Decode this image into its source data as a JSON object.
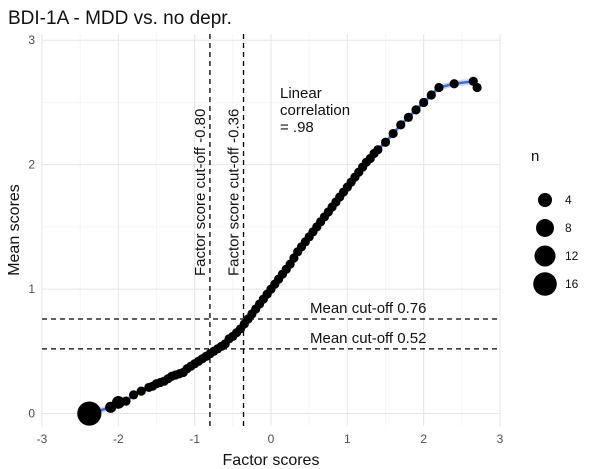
{
  "chart_data": {
    "type": "scatter",
    "title": "BDI-1A - MDD vs. no depr.",
    "xlabel": "Factor scores",
    "ylabel": "Mean scores",
    "xlim": [
      -3,
      3
    ],
    "ylim": [
      -0.1,
      3.05
    ],
    "x_ticks": [
      -3,
      -2,
      -1,
      0,
      1,
      2,
      3
    ],
    "y_ticks": [
      0,
      1,
      2,
      3
    ],
    "grid": true,
    "legend": {
      "title": "n",
      "position": "right",
      "entries": [
        {
          "label": "4",
          "size": 4
        },
        {
          "label": "8",
          "size": 8
        },
        {
          "label": "12",
          "size": 12
        },
        {
          "label": "16",
          "size": 16
        }
      ]
    },
    "vlines": [
      {
        "x": -0.8,
        "label": "Factor score cut-off -0.80"
      },
      {
        "x": -0.36,
        "label": "Factor score cut-off -0.36"
      }
    ],
    "hlines": [
      {
        "y": 0.76,
        "label": "Mean cut-off 0.76"
      },
      {
        "y": 0.52,
        "label": "Mean cut-off 0.52"
      }
    ],
    "annotation": {
      "lines": [
        "Linear",
        "correlation",
        "= .98"
      ]
    },
    "trend_color": "#3d6fe0",
    "point_color": "#000000",
    "points": [
      {
        "x": -2.38,
        "y": 0.0,
        "n": 17
      },
      {
        "x": -2.1,
        "y": 0.05,
        "n": 2
      },
      {
        "x": -2.0,
        "y": 0.09,
        "n": 3
      },
      {
        "x": -1.9,
        "y": 0.1,
        "n": 1
      },
      {
        "x": -1.8,
        "y": 0.15,
        "n": 1
      },
      {
        "x": -1.7,
        "y": 0.18,
        "n": 1
      },
      {
        "x": -1.6,
        "y": 0.21,
        "n": 1
      },
      {
        "x": -1.55,
        "y": 0.22,
        "n": 1
      },
      {
        "x": -1.5,
        "y": 0.24,
        "n": 1
      },
      {
        "x": -1.45,
        "y": 0.25,
        "n": 1
      },
      {
        "x": -1.4,
        "y": 0.26,
        "n": 1
      },
      {
        "x": -1.35,
        "y": 0.28,
        "n": 1
      },
      {
        "x": -1.3,
        "y": 0.3,
        "n": 1
      },
      {
        "x": -1.25,
        "y": 0.31,
        "n": 1
      },
      {
        "x": -1.2,
        "y": 0.32,
        "n": 1
      },
      {
        "x": -1.15,
        "y": 0.33,
        "n": 1
      },
      {
        "x": -1.1,
        "y": 0.36,
        "n": 1
      },
      {
        "x": -1.05,
        "y": 0.38,
        "n": 1
      },
      {
        "x": -1.0,
        "y": 0.4,
        "n": 1
      },
      {
        "x": -0.95,
        "y": 0.42,
        "n": 1
      },
      {
        "x": -0.9,
        "y": 0.44,
        "n": 1
      },
      {
        "x": -0.85,
        "y": 0.46,
        "n": 1
      },
      {
        "x": -0.8,
        "y": 0.48,
        "n": 1
      },
      {
        "x": -0.75,
        "y": 0.5,
        "n": 1
      },
      {
        "x": -0.7,
        "y": 0.52,
        "n": 1
      },
      {
        "x": -0.65,
        "y": 0.54,
        "n": 1
      },
      {
        "x": -0.6,
        "y": 0.56,
        "n": 1
      },
      {
        "x": -0.55,
        "y": 0.6,
        "n": 1
      },
      {
        "x": -0.5,
        "y": 0.62,
        "n": 1
      },
      {
        "x": -0.45,
        "y": 0.65,
        "n": 1
      },
      {
        "x": -0.4,
        "y": 0.68,
        "n": 1
      },
      {
        "x": -0.35,
        "y": 0.72,
        "n": 1
      },
      {
        "x": -0.3,
        "y": 0.76,
        "n": 1
      },
      {
        "x": -0.25,
        "y": 0.8,
        "n": 1
      },
      {
        "x": -0.2,
        "y": 0.84,
        "n": 1
      },
      {
        "x": -0.15,
        "y": 0.88,
        "n": 1
      },
      {
        "x": -0.1,
        "y": 0.92,
        "n": 1
      },
      {
        "x": -0.05,
        "y": 0.96,
        "n": 1
      },
      {
        "x": 0.0,
        "y": 1.0,
        "n": 1
      },
      {
        "x": 0.05,
        "y": 1.04,
        "n": 1
      },
      {
        "x": 0.1,
        "y": 1.08,
        "n": 1
      },
      {
        "x": 0.15,
        "y": 1.12,
        "n": 1
      },
      {
        "x": 0.2,
        "y": 1.16,
        "n": 1
      },
      {
        "x": 0.25,
        "y": 1.2,
        "n": 1
      },
      {
        "x": 0.3,
        "y": 1.25,
        "n": 1
      },
      {
        "x": 0.35,
        "y": 1.3,
        "n": 1
      },
      {
        "x": 0.4,
        "y": 1.34,
        "n": 1
      },
      {
        "x": 0.45,
        "y": 1.38,
        "n": 1
      },
      {
        "x": 0.5,
        "y": 1.42,
        "n": 1
      },
      {
        "x": 0.55,
        "y": 1.46,
        "n": 1
      },
      {
        "x": 0.6,
        "y": 1.5,
        "n": 1
      },
      {
        "x": 0.65,
        "y": 1.54,
        "n": 1
      },
      {
        "x": 0.7,
        "y": 1.58,
        "n": 1
      },
      {
        "x": 0.75,
        "y": 1.62,
        "n": 1
      },
      {
        "x": 0.8,
        "y": 1.66,
        "n": 1
      },
      {
        "x": 0.85,
        "y": 1.7,
        "n": 1
      },
      {
        "x": 0.9,
        "y": 1.74,
        "n": 1
      },
      {
        "x": 0.95,
        "y": 1.78,
        "n": 1
      },
      {
        "x": 1.0,
        "y": 1.82,
        "n": 1
      },
      {
        "x": 1.05,
        "y": 1.86,
        "n": 1
      },
      {
        "x": 1.1,
        "y": 1.9,
        "n": 1
      },
      {
        "x": 1.15,
        "y": 1.94,
        "n": 1
      },
      {
        "x": 1.2,
        "y": 1.98,
        "n": 1
      },
      {
        "x": 1.25,
        "y": 2.02,
        "n": 1
      },
      {
        "x": 1.3,
        "y": 2.05,
        "n": 1
      },
      {
        "x": 1.35,
        "y": 2.09,
        "n": 1
      },
      {
        "x": 1.4,
        "y": 2.12,
        "n": 1
      },
      {
        "x": 1.5,
        "y": 2.18,
        "n": 1
      },
      {
        "x": 1.6,
        "y": 2.25,
        "n": 1
      },
      {
        "x": 1.7,
        "y": 2.32,
        "n": 1
      },
      {
        "x": 1.8,
        "y": 2.38,
        "n": 1
      },
      {
        "x": 1.9,
        "y": 2.44,
        "n": 1
      },
      {
        "x": 2.0,
        "y": 2.5,
        "n": 1
      },
      {
        "x": 2.1,
        "y": 2.56,
        "n": 1
      },
      {
        "x": 2.2,
        "y": 2.62,
        "n": 1
      },
      {
        "x": 2.4,
        "y": 2.65,
        "n": 1
      },
      {
        "x": 2.65,
        "y": 2.67,
        "n": 1
      },
      {
        "x": 2.7,
        "y": 2.62,
        "n": 1
      }
    ]
  }
}
